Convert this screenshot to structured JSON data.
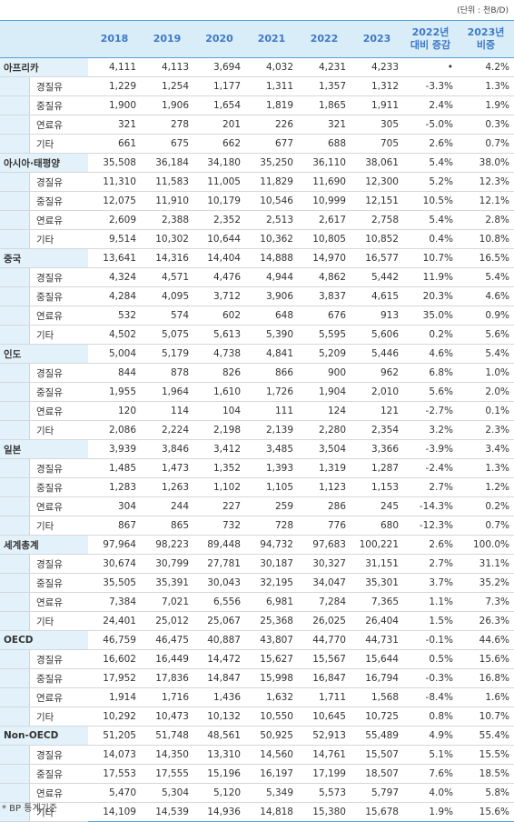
{
  "header": {
    "unit": "(단위 : 천B/D)"
  },
  "table": {
    "columns": [
      "2018",
      "2019",
      "2020",
      "2021",
      "2022",
      "2023",
      "2022년\n대비 증감",
      "2023년\n비중"
    ],
    "groups": [
      {
        "name": "아프리카",
        "values": [
          "4,111",
          "4,113",
          "3,694",
          "4,032",
          "4,231",
          "4,233",
          "•",
          "4.2%"
        ],
        "rows": [
          {
            "name": "경질유",
            "values": [
              "1,229",
              "1,254",
              "1,177",
              "1,311",
              "1,357",
              "1,312",
              "-3.3%",
              "1.3%"
            ]
          },
          {
            "name": "중질유",
            "values": [
              "1,900",
              "1,906",
              "1,654",
              "1,819",
              "1,865",
              "1,911",
              "2.4%",
              "1.9%"
            ]
          },
          {
            "name": "연료유",
            "values": [
              "321",
              "278",
              "201",
              "226",
              "321",
              "305",
              "-5.0%",
              "0.3%"
            ]
          },
          {
            "name": "기타",
            "values": [
              "661",
              "675",
              "662",
              "677",
              "688",
              "705",
              "2.6%",
              "0.7%"
            ]
          }
        ]
      },
      {
        "name": "아시아·태평양",
        "values": [
          "35,508",
          "36,184",
          "34,180",
          "35,250",
          "36,110",
          "38,061",
          "5.4%",
          "38.0%"
        ],
        "rows": [
          {
            "name": "경질유",
            "values": [
              "11,310",
              "11,583",
              "11,005",
              "11,829",
              "11,690",
              "12,300",
              "5.2%",
              "12.3%"
            ]
          },
          {
            "name": "중질유",
            "values": [
              "12,075",
              "11,910",
              "10,179",
              "10,546",
              "10,999",
              "12,151",
              "10.5%",
              "12.1%"
            ]
          },
          {
            "name": "연료유",
            "values": [
              "2,609",
              "2,388",
              "2,352",
              "2,513",
              "2,617",
              "2,758",
              "5.4%",
              "2.8%"
            ]
          },
          {
            "name": "기타",
            "values": [
              "9,514",
              "10,302",
              "10,644",
              "10,362",
              "10,805",
              "10,852",
              "0.4%",
              "10.8%"
            ]
          }
        ]
      },
      {
        "name": "중국",
        "values": [
          "13,641",
          "14,316",
          "14,404",
          "14,888",
          "14,970",
          "16,577",
          "10.7%",
          "16.5%"
        ],
        "rows": [
          {
            "name": "경질유",
            "values": [
              "4,324",
              "4,571",
              "4,476",
              "4,944",
              "4,862",
              "5,442",
              "11.9%",
              "5.4%"
            ]
          },
          {
            "name": "중질유",
            "values": [
              "4,284",
              "4,095",
              "3,712",
              "3,906",
              "3,837",
              "4,615",
              "20.3%",
              "4.6%"
            ]
          },
          {
            "name": "연료유",
            "values": [
              "532",
              "574",
              "602",
              "648",
              "676",
              "913",
              "35.0%",
              "0.9%"
            ]
          },
          {
            "name": "기타",
            "values": [
              "4,502",
              "5,075",
              "5,613",
              "5,390",
              "5,595",
              "5,606",
              "0.2%",
              "5.6%"
            ]
          }
        ]
      },
      {
        "name": "인도",
        "values": [
          "5,004",
          "5,179",
          "4,738",
          "4,841",
          "5,209",
          "5,446",
          "4.6%",
          "5.4%"
        ],
        "rows": [
          {
            "name": "경질유",
            "values": [
              "844",
              "878",
              "826",
              "866",
              "900",
              "962",
              "6.8%",
              "1.0%"
            ]
          },
          {
            "name": "중질유",
            "values": [
              "1,955",
              "1,964",
              "1,610",
              "1,726",
              "1,904",
              "2,010",
              "5.6%",
              "2.0%"
            ]
          },
          {
            "name": "연료유",
            "values": [
              "120",
              "114",
              "104",
              "111",
              "124",
              "121",
              "-2.7%",
              "0.1%"
            ]
          },
          {
            "name": "기타",
            "values": [
              "2,086",
              "2,224",
              "2,198",
              "2,139",
              "2,280",
              "2,354",
              "3.2%",
              "2.3%"
            ]
          }
        ]
      },
      {
        "name": "일본",
        "values": [
          "3,939",
          "3,846",
          "3,412",
          "3,485",
          "3,504",
          "3,366",
          "-3.9%",
          "3.4%"
        ],
        "rows": [
          {
            "name": "경질유",
            "values": [
              "1,485",
              "1,473",
              "1,352",
              "1,393",
              "1,319",
              "1,287",
              "-2.4%",
              "1.3%"
            ]
          },
          {
            "name": "중질유",
            "values": [
              "1,283",
              "1,263",
              "1,102",
              "1,105",
              "1,123",
              "1,153",
              "2.7%",
              "1.2%"
            ]
          },
          {
            "name": "연료유",
            "values": [
              "304",
              "244",
              "227",
              "259",
              "286",
              "245",
              "-14.3%",
              "0.2%"
            ]
          },
          {
            "name": "기타",
            "values": [
              "867",
              "865",
              "732",
              "728",
              "776",
              "680",
              "-12.3%",
              "0.7%"
            ]
          }
        ]
      },
      {
        "name": "세계총계",
        "values": [
          "97,964",
          "98,223",
          "89,448",
          "94,732",
          "97,683",
          "100,221",
          "2.6%",
          "100.0%"
        ],
        "rows": [
          {
            "name": "경질유",
            "values": [
              "30,674",
              "30,799",
              "27,781",
              "30,187",
              "30,327",
              "31,151",
              "2.7%",
              "31.1%"
            ]
          },
          {
            "name": "중질유",
            "values": [
              "35,505",
              "35,391",
              "30,043",
              "32,195",
              "34,047",
              "35,301",
              "3.7%",
              "35.2%"
            ]
          },
          {
            "name": "연료유",
            "values": [
              "7,384",
              "7,021",
              "6,556",
              "6,981",
              "7,284",
              "7,365",
              "1.1%",
              "7.3%"
            ]
          },
          {
            "name": "기타",
            "values": [
              "24,401",
              "25,012",
              "25,067",
              "25,368",
              "26,025",
              "26,404",
              "1.5%",
              "26.3%"
            ]
          }
        ]
      },
      {
        "name": "OECD",
        "values": [
          "46,759",
          "46,475",
          "40,887",
          "43,807",
          "44,770",
          "44,731",
          "-0.1%",
          "44.6%"
        ],
        "rows": [
          {
            "name": "경질유",
            "values": [
              "16,602",
              "16,449",
              "14,472",
              "15,627",
              "15,567",
              "15,644",
              "0.5%",
              "15.6%"
            ]
          },
          {
            "name": "중질유",
            "values": [
              "17,952",
              "17,836",
              "14,847",
              "15,998",
              "16,847",
              "16,794",
              "-0.3%",
              "16.8%"
            ]
          },
          {
            "name": "연료유",
            "values": [
              "1,914",
              "1,716",
              "1,436",
              "1,632",
              "1,711",
              "1,568",
              "-8.4%",
              "1.6%"
            ]
          },
          {
            "name": "기타",
            "values": [
              "10,292",
              "10,473",
              "10,132",
              "10,550",
              "10,645",
              "10,725",
              "0.8%",
              "10.7%"
            ]
          }
        ]
      },
      {
        "name": "Non-OECD",
        "values": [
          "51,205",
          "51,748",
          "48,561",
          "50,925",
          "52,913",
          "55,489",
          "4.9%",
          "55.4%"
        ],
        "rows": [
          {
            "name": "경질유",
            "values": [
              "14,073",
              "14,350",
              "13,310",
              "14,560",
              "14,761",
              "15,507",
              "5.1%",
              "15.5%"
            ]
          },
          {
            "name": "중질유",
            "values": [
              "17,553",
              "17,555",
              "15,196",
              "16,197",
              "17,199",
              "18,507",
              "7.6%",
              "18.5%"
            ]
          },
          {
            "name": "연료유",
            "values": [
              "5,470",
              "5,304",
              "5,120",
              "5,349",
              "5,573",
              "5,797",
              "4.0%",
              "5.8%"
            ]
          },
          {
            "name": "기타",
            "values": [
              "14,109",
              "14,539",
              "14,936",
              "14,818",
              "15,380",
              "15,678",
              "1.9%",
              "15.6%"
            ]
          }
        ]
      }
    ]
  },
  "footnote": "* BP 통계기준"
}
